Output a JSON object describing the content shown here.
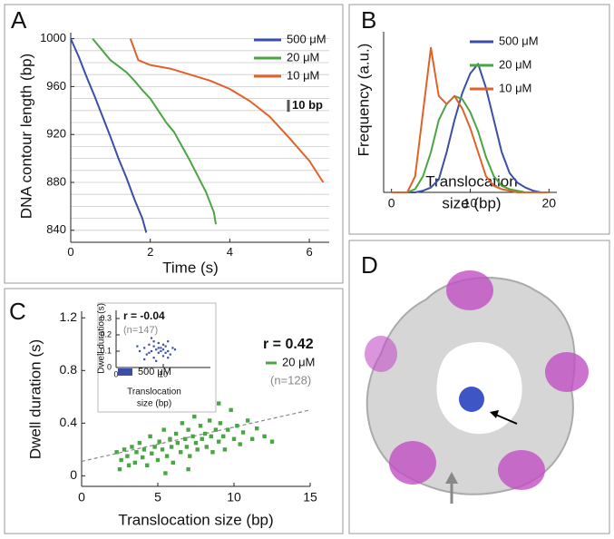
{
  "chart_data": [
    {
      "type": "line",
      "panel_label": "A",
      "xlabel": "Time (s)",
      "ylabel": "DNA contour length (bp)",
      "xlim": [
        0,
        6.5
      ],
      "ylim": [
        830,
        1005
      ],
      "xticks": [
        0,
        2,
        4,
        6
      ],
      "yticks": [
        840,
        880,
        920,
        960,
        1000
      ],
      "yminor": [
        840,
        850,
        860,
        870,
        880,
        890,
        900,
        910,
        920,
        930,
        940,
        950,
        960,
        970,
        980,
        990,
        1000
      ],
      "grid": true,
      "scale_bar": {
        "label": "10 bp",
        "value": 10
      },
      "series": [
        {
          "name": "500 μM",
          "color": "#3b4fa8",
          "x": [
            0,
            0.2,
            0.4,
            0.6,
            0.8,
            1.0,
            1.2,
            1.4,
            1.6,
            1.8,
            1.9
          ],
          "values": [
            1000,
            985,
            968,
            952,
            935,
            918,
            900,
            884,
            866,
            850,
            838
          ]
        },
        {
          "name": "20 μM",
          "color": "#4aa544",
          "x": [
            0.55,
            0.8,
            1.0,
            1.2,
            1.4,
            1.6,
            1.8,
            2.0,
            2.2,
            2.4,
            2.6,
            2.8,
            3.0,
            3.2,
            3.4,
            3.6,
            3.65
          ],
          "values": [
            1000,
            990,
            982,
            977,
            972,
            965,
            957,
            950,
            940,
            930,
            922,
            910,
            898,
            885,
            872,
            855,
            845
          ]
        },
        {
          "name": "10 μM",
          "color": "#e0622a",
          "x": [
            1.5,
            1.7,
            2.0,
            2.5,
            3.0,
            3.5,
            4.0,
            4.5,
            5.0,
            5.5,
            6.0,
            6.35
          ],
          "values": [
            1000,
            982,
            978,
            975,
            970,
            965,
            958,
            948,
            935,
            917,
            898,
            880
          ]
        }
      ]
    },
    {
      "type": "line",
      "panel_label": "B",
      "xlabel": [
        "Translocation",
        "size (bp)"
      ],
      "ylabel": "Frequency (a.u.)",
      "xlim": [
        -1,
        21
      ],
      "ylim": [
        0,
        1
      ],
      "xticks": [
        0,
        10,
        20
      ],
      "x": [
        0,
        1,
        2,
        3,
        4,
        5,
        6,
        7,
        8,
        9,
        10,
        11,
        12,
        13,
        14,
        15,
        16,
        17,
        18,
        19,
        20
      ],
      "series": [
        {
          "name": "500 μM",
          "color": "#3b4fa8",
          "values": [
            0,
            0,
            0,
            0,
            0.01,
            0.03,
            0.08,
            0.25,
            0.45,
            0.62,
            0.74,
            0.8,
            0.65,
            0.45,
            0.25,
            0.12,
            0.06,
            0.03,
            0.01,
            0,
            0
          ]
        },
        {
          "name": "20 μM",
          "color": "#4aa544",
          "values": [
            0,
            0,
            0,
            0.02,
            0.1,
            0.25,
            0.45,
            0.55,
            0.6,
            0.58,
            0.5,
            0.38,
            0.22,
            0.1,
            0.04,
            0.02,
            0.01,
            0,
            0,
            0,
            0
          ]
        },
        {
          "name": "10 μM",
          "color": "#e0622a",
          "values": [
            0,
            0,
            0,
            0.1,
            0.5,
            0.9,
            0.6,
            0.55,
            0.6,
            0.52,
            0.4,
            0.25,
            0.1,
            0.04,
            0.02,
            0.01,
            0,
            0,
            0,
            0,
            0
          ]
        }
      ]
    },
    {
      "type": "scatter",
      "panel_label": "C",
      "xlabel": "Translocation size (bp)",
      "ylabel": "Dwell duration (s)",
      "xlim": [
        0,
        15
      ],
      "ylim": [
        -0.08,
        1.25
      ],
      "xticks": [
        0,
        5,
        10,
        15
      ],
      "yticks": [
        0,
        0.4,
        0.8,
        1.2
      ],
      "annotations": [
        "r = 0.42",
        "(n=128)"
      ],
      "fit": {
        "x": [
          0,
          15
        ],
        "values": [
          0.11,
          0.5
        ],
        "color": "#888888"
      },
      "series": [
        {
          "name": "20 μM",
          "color": "#4aa544",
          "x": [
            2.3,
            2.5,
            2.6,
            2.8,
            3.0,
            3.1,
            3.3,
            3.5,
            3.6,
            3.8,
            4.0,
            4.1,
            4.3,
            4.5,
            4.6,
            4.8,
            5.0,
            5.1,
            5.3,
            5.4,
            5.6,
            5.8,
            5.9,
            6.0,
            6.2,
            6.3,
            6.5,
            6.6,
            6.8,
            6.9,
            7.0,
            7.1,
            7.3,
            7.4,
            7.5,
            7.6,
            7.8,
            7.9,
            8.0,
            8.1,
            8.2,
            8.4,
            8.5,
            8.6,
            8.8,
            9.0,
            9.1,
            9.3,
            9.4,
            9.6,
            9.8,
            10.0,
            10.2,
            10.4,
            10.6,
            10.9,
            11.2,
            11.5,
            12.0,
            12.5,
            7.0,
            5.5,
            9.0,
            6.0
          ],
          "values": [
            0.18,
            0.05,
            0.12,
            0.2,
            0.15,
            0.08,
            0.22,
            0.1,
            0.18,
            0.25,
            0.14,
            0.2,
            0.08,
            0.3,
            0.17,
            0.22,
            0.12,
            0.26,
            0.2,
            0.35,
            0.15,
            0.28,
            0.22,
            0.1,
            0.32,
            0.25,
            0.18,
            0.4,
            0.28,
            0.22,
            0.35,
            0.15,
            0.3,
            0.45,
            0.25,
            0.2,
            0.38,
            0.28,
            0.62,
            0.32,
            0.22,
            0.42,
            0.3,
            0.18,
            0.35,
            0.26,
            0.4,
            0.3,
            0.2,
            0.35,
            0.5,
            0.28,
            0.38,
            0.24,
            0.33,
            0.42,
            0.28,
            0.36,
            0.3,
            0.26,
            0.05,
            0.02,
            0.55,
            0.55
          ]
        }
      ]
    },
    {
      "type": "scatter",
      "xlabel": [
        "Translocation",
        "size (bp)"
      ],
      "ylabel": "Dwell duration (s)",
      "xlim": [
        0,
        20
      ],
      "ylim": [
        0,
        0.35
      ],
      "xticks": [
        0,
        10
      ],
      "yticks": [
        0,
        0.1,
        0.2,
        0.3
      ],
      "annotations": [
        "r = -0.04",
        "(n=147)"
      ],
      "series": [
        {
          "name": "500 μM",
          "color": "#3b4fa8",
          "x": [
            5,
            6,
            6.5,
            7,
            7.5,
            8,
            8,
            8.5,
            9,
            9,
            9.5,
            10,
            10,
            10.5,
            11,
            11,
            11.5,
            12,
            6,
            7,
            8,
            9,
            10,
            11,
            7.5,
            8.5,
            9.5,
            10.5,
            12.5,
            4.5
          ],
          "values": [
            0.1,
            0.12,
            0.08,
            0.14,
            0.1,
            0.06,
            0.13,
            0.11,
            0.09,
            0.15,
            0.12,
            0.07,
            0.11,
            0.13,
            0.1,
            0.16,
            0.08,
            0.12,
            0.05,
            0.09,
            0.16,
            0.12,
            0.14,
            0.06,
            0.18,
            0.04,
            0.1,
            0.09,
            0.11,
            0.13
          ]
        }
      ]
    }
  ],
  "panel_d": {
    "panel_label": "D"
  }
}
